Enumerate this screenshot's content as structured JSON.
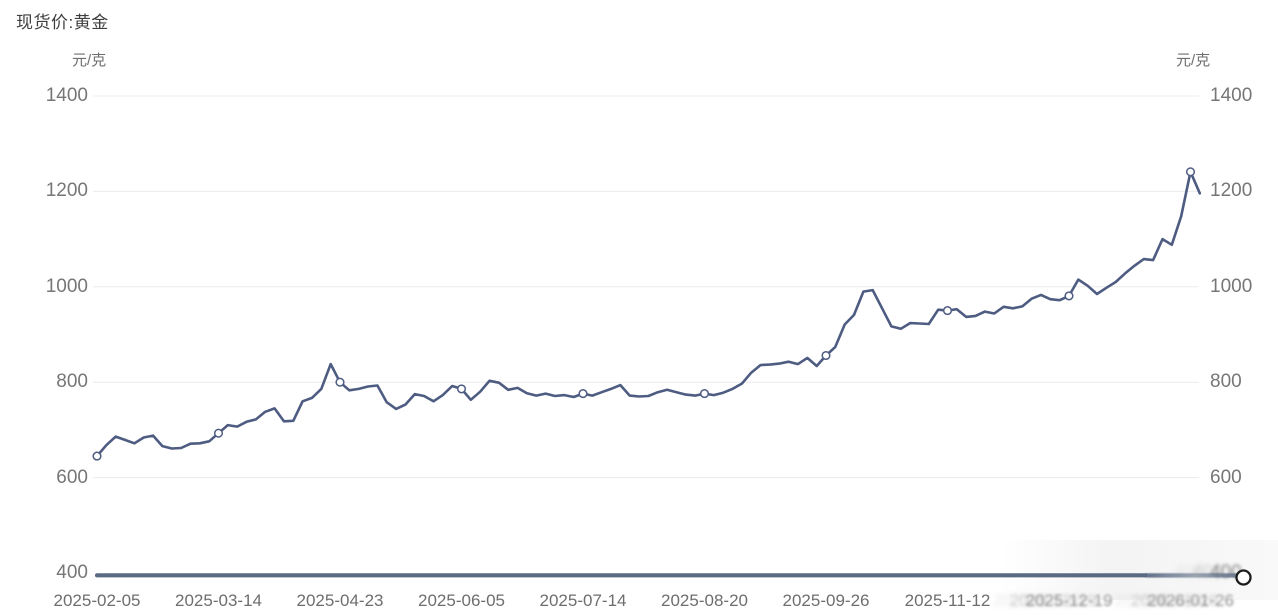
{
  "header": {
    "title": "现货价:黄金"
  },
  "axes": {
    "unit": "元/克",
    "y_ticks": [
      1400,
      1200,
      1000,
      800,
      600,
      400
    ],
    "x_tick_labels": [
      "2025-02-05",
      "2025-03-14",
      "2025-04-23",
      "2025-06-05",
      "2025-07-14",
      "2025-08-20",
      "2025-09-26",
      "2025-11-12",
      "2025-12-19",
      "2026-01-26"
    ]
  },
  "colors": {
    "line": "#4e5c82",
    "marker_fill": "#ffffff",
    "grid": "#ebebeb",
    "axis_text": "#767676",
    "title_text": "#3f3f3f",
    "bottom_bar": "#5a6a82",
    "handle_stroke": "#1c1c1c"
  },
  "chart_data": {
    "type": "line",
    "title": "现货价:黄金",
    "ylabel": "元/克",
    "ylim": [
      400,
      1400
    ],
    "y_ticks": [
      1400,
      1200,
      1000,
      800,
      600,
      400
    ],
    "grid": "horizontal",
    "legend": "none",
    "x_note": "119 evenly spaced trading-day samples from 2025-02-05 to 2026-01-28; category axis with labeled ticks every 13 samples",
    "x_tick_labels": [
      "2025-02-05",
      "2025-03-14",
      "2025-04-23",
      "2025-06-05",
      "2025-07-14",
      "2025-08-20",
      "2025-09-26",
      "2025-11-12",
      "2025-12-19",
      "2026-01-26"
    ],
    "x_tick_indices": [
      0,
      13,
      26,
      39,
      52,
      65,
      78,
      91,
      104,
      117
    ],
    "marker_indices": [
      0,
      13,
      26,
      39,
      52,
      65,
      78,
      91,
      104,
      117
    ],
    "blurred_tick_indices": [
      8,
      9
    ],
    "series": [
      {
        "name": "现货价:黄金",
        "values": [
          645,
          668,
          686,
          679,
          672,
          684,
          688,
          666,
          661,
          662,
          671,
          672,
          676,
          693,
          710,
          707,
          717,
          722,
          738,
          745,
          718,
          719,
          760,
          767,
          786,
          838,
          800,
          783,
          786,
          791,
          793,
          758,
          744,
          753,
          775,
          771,
          760,
          773,
          792,
          786,
          763,
          780,
          803,
          799,
          784,
          788,
          777,
          772,
          776,
          771,
          773,
          769,
          776,
          772,
          779,
          786,
          794,
          772,
          770,
          771,
          779,
          784,
          779,
          774,
          772,
          776,
          773,
          778,
          786,
          797,
          820,
          836,
          837,
          839,
          843,
          838,
          851,
          834,
          856,
          874,
          921,
          941,
          990,
          993,
          955,
          917,
          912,
          924,
          923,
          922,
          952,
          950,
          953,
          937,
          939,
          948,
          944,
          958,
          955,
          959,
          975,
          983,
          974,
          972,
          981,
          1015,
          1002,
          985,
          998,
          1010,
          1028,
          1044,
          1058,
          1056,
          1100,
          1088,
          1148,
          1241,
          1196
        ]
      }
    ],
    "key_points": {
      "start": {
        "label": "2025-02-05",
        "value": 645
      },
      "april_spike": {
        "label": "2025-04-22",
        "value": 838
      },
      "october_peak": {
        "label": "2025-10-17",
        "value": 993
      },
      "final_peak": {
        "label": "2026-01-26",
        "value": 1241
      },
      "last": {
        "label": "2026-01-28",
        "value": 1196
      }
    }
  }
}
